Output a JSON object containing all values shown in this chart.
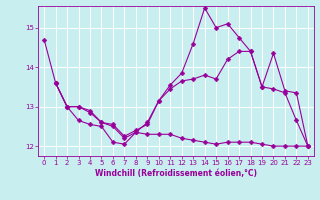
{
  "xlabel": "Windchill (Refroidissement éolien,°C)",
  "background_color": "#c8eef0",
  "line_color": "#990099",
  "grid_color": "#ffffff",
  "xlim": [
    -0.5,
    23.5
  ],
  "ylim": [
    11.75,
    15.55
  ],
  "yticks": [
    12,
    13,
    14,
    15
  ],
  "xticks": [
    0,
    1,
    2,
    3,
    4,
    5,
    6,
    7,
    8,
    9,
    10,
    11,
    12,
    13,
    14,
    15,
    16,
    17,
    18,
    19,
    20,
    21,
    22,
    23
  ],
  "line1_x": [
    0,
    1,
    2,
    3,
    4,
    5,
    6,
    7,
    8,
    9,
    10,
    11,
    12,
    13,
    14,
    15,
    16,
    17,
    18,
    19,
    20,
    21,
    22,
    23
  ],
  "line1_y": [
    14.7,
    13.6,
    13.0,
    13.0,
    12.9,
    12.6,
    12.5,
    12.2,
    12.35,
    12.6,
    13.15,
    13.55,
    13.85,
    14.6,
    15.5,
    15.0,
    15.1,
    14.75,
    14.4,
    13.5,
    13.45,
    13.35,
    12.65,
    12.0
  ],
  "line2_x": [
    1,
    2,
    3,
    4,
    5,
    6,
    7,
    8,
    9,
    10,
    11,
    12,
    13,
    14,
    15,
    16,
    17,
    18,
    19,
    20,
    21,
    22,
    23
  ],
  "line2_y": [
    13.6,
    13.0,
    13.0,
    12.85,
    12.6,
    12.55,
    12.25,
    12.4,
    12.55,
    13.15,
    13.45,
    13.65,
    13.7,
    13.8,
    13.7,
    14.2,
    14.4,
    14.4,
    13.5,
    14.35,
    13.4,
    13.35,
    12.0
  ],
  "line3_x": [
    1,
    2,
    3,
    4,
    5,
    6,
    7,
    8,
    9,
    10,
    11,
    12,
    13,
    14,
    15,
    16,
    17,
    18,
    19,
    20,
    21,
    22,
    23
  ],
  "line3_y": [
    13.6,
    13.0,
    12.65,
    12.55,
    12.5,
    12.1,
    12.05,
    12.35,
    12.3,
    12.3,
    12.3,
    12.2,
    12.15,
    12.1,
    12.05,
    12.1,
    12.1,
    12.1,
    12.05,
    12.0,
    12.0,
    12.0,
    12.0
  ]
}
